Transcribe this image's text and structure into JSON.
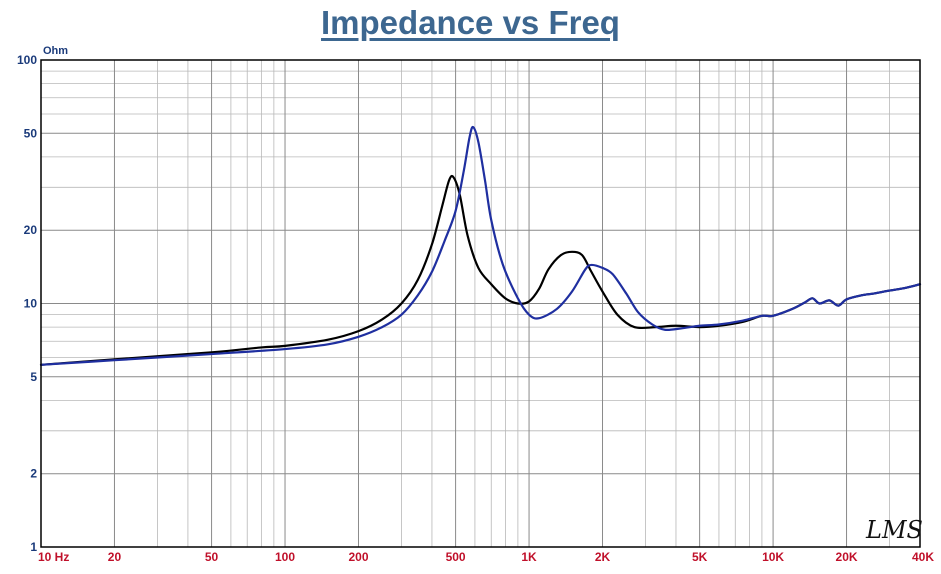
{
  "chart_data": {
    "type": "line",
    "title": "Impedance vs Freq",
    "y_unit": "Ohm",
    "x_scale": "log",
    "y_scale": "log",
    "xlim": [
      10,
      40000
    ],
    "ylim": [
      1,
      100
    ],
    "x_ticks": [
      {
        "v": 10,
        "label": "10  Hz"
      },
      {
        "v": 20,
        "label": "20"
      },
      {
        "v": 50,
        "label": "50"
      },
      {
        "v": 100,
        "label": "100"
      },
      {
        "v": 200,
        "label": "200"
      },
      {
        "v": 500,
        "label": "500"
      },
      {
        "v": 1000,
        "label": "1K"
      },
      {
        "v": 2000,
        "label": "2K"
      },
      {
        "v": 5000,
        "label": "5K"
      },
      {
        "v": 10000,
        "label": "10K"
      },
      {
        "v": 20000,
        "label": "20K"
      },
      {
        "v": 40000,
        "label": "40K"
      }
    ],
    "y_ticks": [
      {
        "v": 100,
        "label": "100"
      },
      {
        "v": 50,
        "label": "50"
      },
      {
        "v": 20,
        "label": "20"
      },
      {
        "v": 10,
        "label": "10"
      },
      {
        "v": 5,
        "label": "5"
      },
      {
        "v": 2,
        "label": "2"
      },
      {
        "v": 1,
        "label": "1"
      }
    ],
    "grid": true,
    "series": [
      {
        "color": "#000000",
        "points": [
          [
            10,
            5.6
          ],
          [
            20,
            5.9
          ],
          [
            50,
            6.3
          ],
          [
            80,
            6.6
          ],
          [
            100,
            6.7
          ],
          [
            150,
            7.1
          ],
          [
            200,
            7.7
          ],
          [
            250,
            8.6
          ],
          [
            300,
            10.0
          ],
          [
            350,
            12.5
          ],
          [
            400,
            17.5
          ],
          [
            440,
            25
          ],
          [
            470,
            32
          ],
          [
            490,
            33
          ],
          [
            520,
            28
          ],
          [
            560,
            19
          ],
          [
            620,
            14
          ],
          [
            700,
            12
          ],
          [
            800,
            10.5
          ],
          [
            900,
            10.0
          ],
          [
            1000,
            10.2
          ],
          [
            1100,
            11.5
          ],
          [
            1200,
            13.8
          ],
          [
            1350,
            15.8
          ],
          [
            1500,
            16.3
          ],
          [
            1650,
            15.8
          ],
          [
            1800,
            13.5
          ],
          [
            2000,
            11.2
          ],
          [
            2300,
            9.0
          ],
          [
            2700,
            8.0
          ],
          [
            3300,
            8.0
          ],
          [
            4000,
            8.1
          ],
          [
            5000,
            8.0
          ],
          [
            6000,
            8.1
          ],
          [
            7500,
            8.4
          ],
          [
            9000,
            8.9
          ],
          [
            10000,
            8.9
          ],
          [
            12000,
            9.5
          ],
          [
            13500,
            10.1
          ],
          [
            14500,
            10.5
          ],
          [
            15500,
            10.0
          ],
          [
            17000,
            10.3
          ],
          [
            18500,
            9.8
          ],
          [
            20000,
            10.4
          ],
          [
            23000,
            10.8
          ],
          [
            26000,
            11.0
          ],
          [
            30000,
            11.3
          ],
          [
            35000,
            11.6
          ],
          [
            40000,
            12.0
          ]
        ]
      },
      {
        "color": "#1f2fa0",
        "points": [
          [
            10,
            5.6
          ],
          [
            20,
            5.85
          ],
          [
            50,
            6.2
          ],
          [
            100,
            6.5
          ],
          [
            150,
            6.8
          ],
          [
            200,
            7.3
          ],
          [
            250,
            8.0
          ],
          [
            300,
            9.0
          ],
          [
            350,
            10.8
          ],
          [
            400,
            13.5
          ],
          [
            450,
            18
          ],
          [
            500,
            24
          ],
          [
            540,
            35
          ],
          [
            570,
            48
          ],
          [
            590,
            53
          ],
          [
            620,
            46
          ],
          [
            660,
            32
          ],
          [
            700,
            22
          ],
          [
            780,
            14.5
          ],
          [
            900,
            10.5
          ],
          [
            1000,
            9.0
          ],
          [
            1100,
            8.7
          ],
          [
            1300,
            9.5
          ],
          [
            1500,
            11.2
          ],
          [
            1700,
            13.8
          ],
          [
            1800,
            14.4
          ],
          [
            2000,
            14.0
          ],
          [
            2200,
            13.2
          ],
          [
            2500,
            11.0
          ],
          [
            2800,
            9.2
          ],
          [
            3200,
            8.2
          ],
          [
            3600,
            7.8
          ],
          [
            4200,
            7.9
          ],
          [
            5000,
            8.1
          ],
          [
            6000,
            8.2
          ],
          [
            7500,
            8.5
          ],
          [
            9000,
            8.9
          ],
          [
            10000,
            8.9
          ],
          [
            12000,
            9.5
          ],
          [
            13500,
            10.1
          ],
          [
            14500,
            10.5
          ],
          [
            15500,
            10.0
          ],
          [
            17000,
            10.3
          ],
          [
            18500,
            9.8
          ],
          [
            20000,
            10.4
          ],
          [
            23000,
            10.8
          ],
          [
            26000,
            11.0
          ],
          [
            30000,
            11.3
          ],
          [
            35000,
            11.6
          ],
          [
            40000,
            12.0
          ]
        ]
      }
    ]
  },
  "logo": "LMS"
}
